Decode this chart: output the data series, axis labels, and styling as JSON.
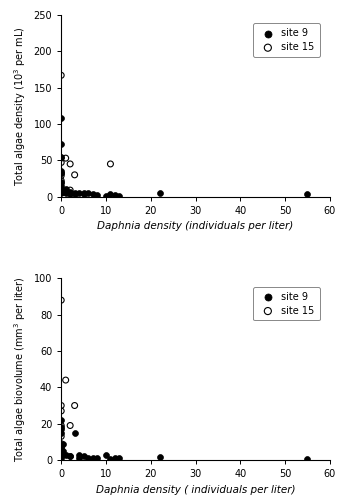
{
  "top": {
    "site9_x": [
      0,
      0,
      0,
      0,
      0,
      0,
      0,
      0,
      0,
      0.5,
      0.5,
      1,
      1,
      2,
      2,
      3,
      3,
      4,
      5,
      5,
      6,
      7,
      8,
      10,
      11,
      12,
      13,
      22,
      55
    ],
    "site9_y": [
      108,
      73,
      54,
      35,
      32,
      20,
      15,
      10,
      5,
      8,
      7,
      10,
      5,
      6,
      4,
      5,
      3,
      5,
      5,
      3,
      5,
      4,
      2,
      1,
      4,
      2,
      1,
      5,
      3
    ],
    "site15_x": [
      0,
      0,
      0,
      0,
      0,
      0,
      0,
      1,
      2,
      2,
      3,
      11
    ],
    "site15_y": [
      167,
      53,
      47,
      32,
      29,
      22,
      18,
      53,
      45,
      9,
      30,
      45
    ],
    "ylabel": "Total algae density (10$^3$ per mL)",
    "xlabel": "Daphnia density (individuals per liter)",
    "ylim": [
      0,
      250
    ],
    "xlim": [
      0,
      60
    ],
    "yticks": [
      0,
      50,
      100,
      150,
      200,
      250
    ],
    "xticks": [
      0,
      10,
      20,
      30,
      40,
      50,
      60
    ]
  },
  "bottom": {
    "site9_x": [
      0,
      0,
      0,
      0,
      0,
      0,
      0,
      0,
      0,
      0,
      0,
      0.5,
      0.5,
      1,
      2,
      2,
      3,
      4,
      4,
      5,
      6,
      7,
      8,
      10,
      11,
      12,
      13,
      22,
      55
    ],
    "site9_y": [
      22,
      18,
      17,
      15,
      8,
      7,
      5,
      3,
      2,
      2,
      1,
      9,
      5,
      3,
      2,
      2,
      15,
      1,
      3,
      2,
      1,
      1,
      1,
      3,
      0.5,
      1,
      1,
      1.5,
      0.8
    ],
    "site15_x": [
      0,
      0,
      0,
      0,
      0,
      0,
      0,
      1,
      2,
      3
    ],
    "site15_y": [
      88,
      30,
      27,
      19,
      13,
      9,
      6,
      44,
      19,
      30
    ],
    "ylabel": "Total algae biovolume (mm$^3$ per liter)",
    "xlabel": "Daphnia density ( individuals per liter)",
    "ylim": [
      0,
      100
    ],
    "xlim": [
      0,
      60
    ],
    "yticks": [
      0,
      20,
      40,
      60,
      80,
      100
    ],
    "xticks": [
      0,
      10,
      20,
      30,
      40,
      50,
      60
    ]
  },
  "marker_size": 18,
  "site9_color": "#000000",
  "site15_color": "#000000",
  "bg_color": "#ffffff",
  "legend_site9": "site 9",
  "legend_site15": "site 15"
}
